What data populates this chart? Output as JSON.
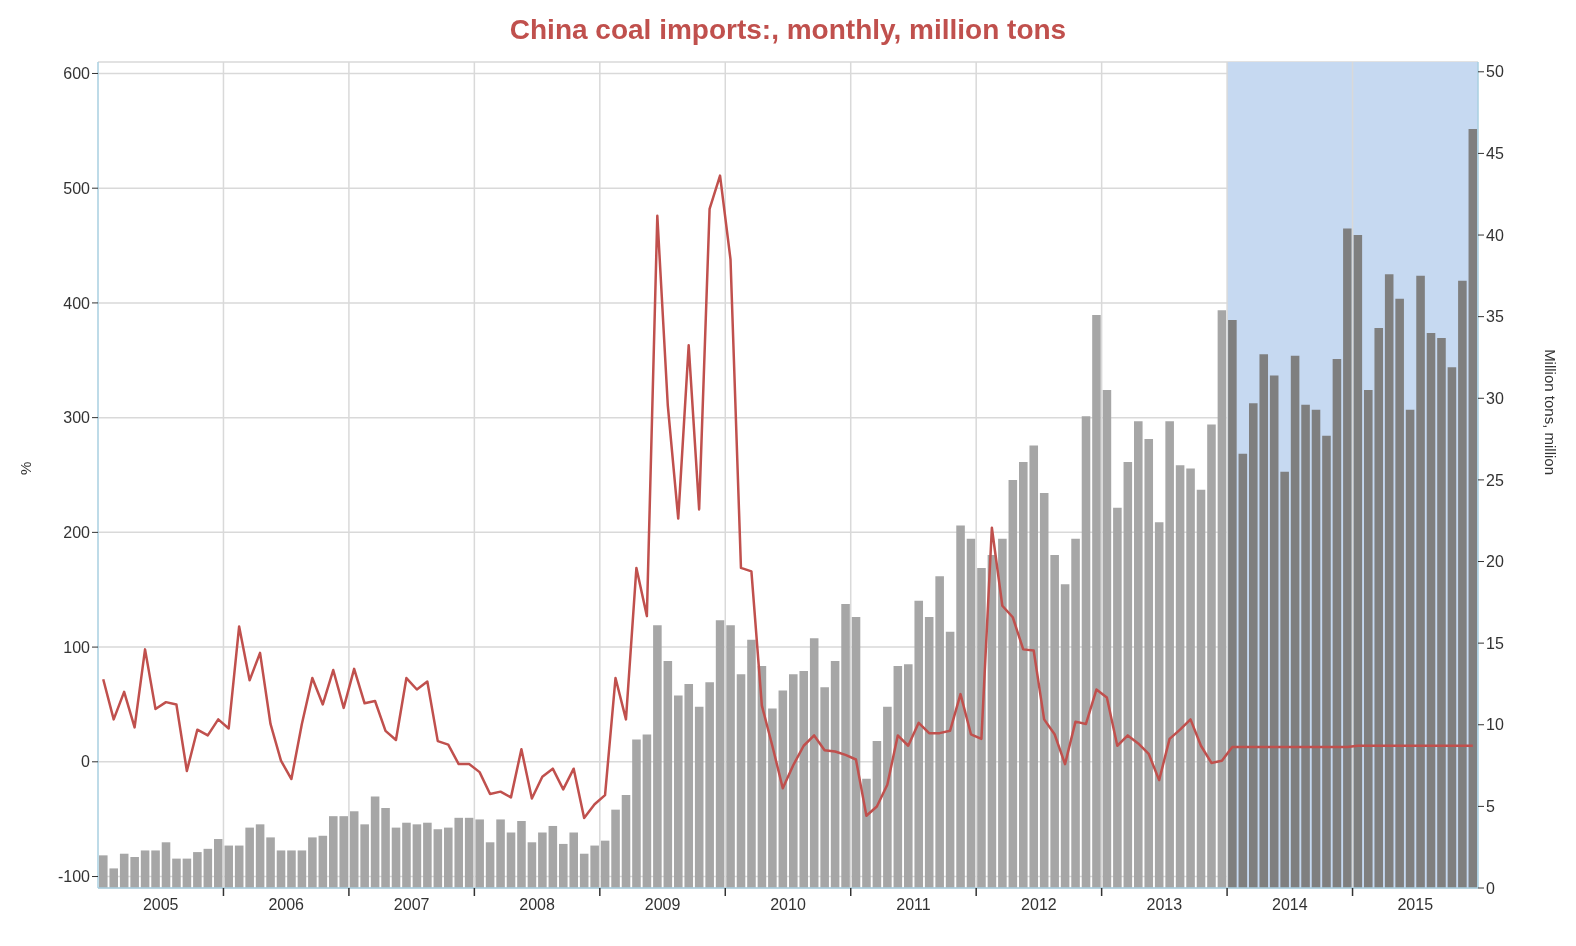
{
  "chart_data": {
    "type": "bar",
    "title": "China coal imports:, monthly, million tons",
    "ylabel": "%",
    "y2label": "Million tons, million",
    "x": [
      "2005-01",
      "2005-02",
      "2005-03",
      "2005-04",
      "2005-05",
      "2005-06",
      "2005-07",
      "2005-08",
      "2005-09",
      "2005-10",
      "2005-11",
      "2005-12",
      "2006-01",
      "2006-02",
      "2006-03",
      "2006-04",
      "2006-05",
      "2006-06",
      "2006-07",
      "2006-08",
      "2006-09",
      "2006-10",
      "2006-11",
      "2006-12",
      "2007-01",
      "2007-02",
      "2007-03",
      "2007-04",
      "2007-05",
      "2007-06",
      "2007-07",
      "2007-08",
      "2007-09",
      "2007-10",
      "2007-11",
      "2007-12",
      "2008-01",
      "2008-02",
      "2008-03",
      "2008-04",
      "2008-05",
      "2008-06",
      "2008-07",
      "2008-08",
      "2008-09",
      "2008-10",
      "2008-11",
      "2008-12",
      "2009-01",
      "2009-02",
      "2009-03",
      "2009-04",
      "2009-05",
      "2009-06",
      "2009-07",
      "2009-08",
      "2009-09",
      "2009-10",
      "2009-11",
      "2009-12",
      "2010-01",
      "2010-02",
      "2010-03",
      "2010-04",
      "2010-05",
      "2010-06",
      "2010-07",
      "2010-08",
      "2010-09",
      "2010-10",
      "2010-11",
      "2010-12",
      "2011-01",
      "2011-02",
      "2011-03",
      "2011-04",
      "2011-05",
      "2011-06",
      "2011-07",
      "2011-08",
      "2011-09",
      "2011-10",
      "2011-11",
      "2011-12",
      "2012-01",
      "2012-02",
      "2012-03",
      "2012-04",
      "2012-05",
      "2012-06",
      "2012-07",
      "2012-08",
      "2012-09",
      "2012-10",
      "2012-11",
      "2012-12",
      "2013-01",
      "2013-02",
      "2013-03",
      "2013-04",
      "2013-05",
      "2013-06",
      "2013-07",
      "2013-08",
      "2013-09",
      "2013-10",
      "2013-11",
      "2013-12",
      "2014-01",
      "2014-02",
      "2014-03",
      "2014-04",
      "2014-05",
      "2014-06",
      "2014-07",
      "2014-08",
      "2014-09",
      "2014-10",
      "2014-11",
      "2014-12",
      "2015-01",
      "2015-02",
      "2015-03",
      "2015-04",
      "2015-05",
      "2015-06",
      "2015-07",
      "2015-08",
      "2015-09",
      "2015-10",
      "2015-11",
      "2015-12"
    ],
    "series": [
      {
        "axis": "y2",
        "colors": [
          "#a6a6a6",
          "#a6a6a6",
          "#a6a6a6",
          "#a6a6a6",
          "#a6a6a6",
          "#a6a6a6",
          "#a6a6a6",
          "#a6a6a6",
          "#a6a6a6",
          "#a6a6a6",
          "#a6a6a6",
          "#a6a6a6",
          "#a6a6a6",
          "#a6a6a6",
          "#a6a6a6",
          "#a6a6a6",
          "#a6a6a6",
          "#a6a6a6",
          "#a6a6a6",
          "#a6a6a6",
          "#a6a6a6",
          "#a6a6a6",
          "#a6a6a6",
          "#a6a6a6",
          "#a6a6a6",
          "#a6a6a6",
          "#a6a6a6",
          "#a6a6a6",
          "#a6a6a6",
          "#a6a6a6",
          "#a6a6a6",
          "#a6a6a6",
          "#a6a6a6",
          "#a6a6a6",
          "#a6a6a6",
          "#a6a6a6",
          "#a6a6a6",
          "#a6a6a6",
          "#a6a6a6",
          "#a6a6a6",
          "#a6a6a6",
          "#a6a6a6",
          "#a6a6a6",
          "#a6a6a6",
          "#a6a6a6",
          "#a6a6a6",
          "#a6a6a6",
          "#a6a6a6",
          "#a6a6a6",
          "#a6a6a6",
          "#a6a6a6",
          "#a6a6a6",
          "#a6a6a6",
          "#a6a6a6",
          "#a6a6a6",
          "#a6a6a6",
          "#a6a6a6",
          "#a6a6a6",
          "#a6a6a6",
          "#a6a6a6",
          "#a6a6a6",
          "#a6a6a6",
          "#a6a6a6",
          "#a6a6a6",
          "#a6a6a6",
          "#a6a6a6",
          "#a6a6a6",
          "#a6a6a6",
          "#a6a6a6",
          "#a6a6a6",
          "#a6a6a6",
          "#a6a6a6",
          "#a6a6a6",
          "#a6a6a6",
          "#a6a6a6",
          "#a6a6a6",
          "#a6a6a6",
          "#a6a6a6",
          "#a6a6a6",
          "#a6a6a6",
          "#a6a6a6",
          "#a6a6a6",
          "#a6a6a6",
          "#a6a6a6",
          "#a6a6a6",
          "#a6a6a6",
          "#a6a6a6",
          "#a6a6a6",
          "#a6a6a6",
          "#a6a6a6",
          "#a6a6a6",
          "#a6a6a6",
          "#a6a6a6",
          "#a6a6a6",
          "#a6a6a6",
          "#a6a6a6",
          "#a6a6a6",
          "#a6a6a6",
          "#a6a6a6",
          "#a6a6a6",
          "#a6a6a6",
          "#a6a6a6",
          "#a6a6a6",
          "#a6a6a6",
          "#a6a6a6",
          "#a6a6a6",
          "#a6a6a6",
          "#a6a6a6",
          "#7f7f7f",
          "#7f7f7f",
          "#7f7f7f",
          "#7f7f7f",
          "#7f7f7f",
          "#7f7f7f",
          "#7f7f7f",
          "#7f7f7f",
          "#7f7f7f",
          "#7f7f7f",
          "#7f7f7f",
          "#7f7f7f",
          "#7f7f7f",
          "#7f7f7f",
          "#7f7f7f",
          "#7f7f7f",
          "#7f7f7f",
          "#7f7f7f",
          "#7f7f7f",
          "#7f7f7f",
          "#7f7f7f",
          "#7f7f7f",
          "#7f7f7f",
          "#7f7f7f"
        ],
        "values": [
          2.0,
          1.2,
          2.1,
          1.9,
          2.3,
          2.3,
          2.8,
          1.8,
          1.8,
          2.2,
          2.4,
          3.0,
          2.6,
          2.6,
          3.7,
          3.9,
          3.1,
          2.3,
          2.3,
          2.3,
          3.1,
          3.2,
          4.4,
          4.4,
          4.7,
          3.9,
          5.6,
          4.9,
          3.7,
          4.0,
          3.9,
          4.0,
          3.6,
          3.7,
          4.3,
          4.3,
          4.2,
          2.8,
          4.2,
          3.4,
          4.1,
          2.8,
          3.4,
          3.8,
          2.7,
          3.4,
          2.1,
          2.6,
          2.9,
          4.8,
          5.7,
          9.1,
          9.4,
          16.1,
          13.9,
          11.8,
          12.5,
          11.1,
          12.6,
          16.4,
          16.1,
          13.1,
          15.2,
          13.6,
          11.0,
          12.1,
          13.1,
          13.3,
          15.3,
          12.3,
          13.9,
          17.4,
          16.6,
          6.7,
          9.0,
          11.1,
          13.6,
          13.7,
          17.6,
          16.6,
          19.1,
          15.7,
          22.2,
          21.4,
          19.6,
          20.4,
          21.4,
          25.0,
          26.1,
          27.1,
          24.2,
          20.4,
          18.6,
          21.4,
          28.9,
          35.1,
          30.5,
          23.3,
          26.1,
          28.6,
          27.5,
          22.4,
          28.6,
          25.9,
          25.7,
          24.4,
          28.4,
          35.4,
          34.8,
          26.6,
          29.7,
          32.7,
          31.4,
          25.5,
          32.6,
          29.6,
          29.3,
          27.7,
          32.4,
          40.4,
          40.0,
          30.5,
          34.3,
          37.6,
          36.1,
          29.3,
          37.5,
          34.0,
          33.7,
          31.9,
          37.2,
          46.5
        ]
      },
      {
        "type": "line",
        "color": "#c0504d",
        "values": [
          72,
          37,
          61,
          30,
          98,
          46,
          52,
          50,
          -8,
          28,
          23,
          37,
          29,
          118,
          71,
          95,
          33,
          1,
          -15,
          33,
          73,
          50,
          80,
          47,
          81,
          51,
          53,
          27,
          19,
          73,
          63,
          70,
          18,
          15,
          -2,
          -2,
          -9,
          -28,
          -26,
          -31,
          11,
          -32,
          -13,
          -6,
          -24,
          -6,
          -49,
          -37,
          -29,
          73,
          37,
          169,
          127,
          476,
          311,
          212,
          363,
          220,
          482,
          511,
          438,
          169,
          166,
          49,
          14,
          -23,
          -3,
          14,
          23,
          10,
          9,
          6,
          2,
          -47,
          -39,
          -20,
          23,
          14,
          34,
          25,
          25,
          27,
          59,
          24,
          20,
          204,
          136,
          126,
          98,
          97,
          37,
          24,
          -2,
          35,
          33,
          63,
          56,
          14,
          23,
          16,
          7,
          -16,
          20,
          28,
          37,
          14,
          -1,
          1,
          13,
          13,
          13,
          13,
          13,
          13,
          13,
          13,
          13,
          13,
          13,
          13,
          14,
          14,
          14,
          14,
          14,
          14,
          14,
          14,
          14,
          14,
          14,
          14
        ]
      }
    ],
    "xlim": [
      "2004-12-16",
      "2015-12-16"
    ],
    "xticks": [
      {
        "value": "2005-06-16",
        "label": "2005"
      },
      {
        "value": "2005-12-16",
        "label": null
      },
      {
        "value": "2006-06-16",
        "label": "2006"
      },
      {
        "value": "2006-12-16",
        "label": null
      },
      {
        "value": "2007-06-16",
        "label": "2007"
      },
      {
        "value": "2007-12-16",
        "label": null
      },
      {
        "value": "2008-06-16",
        "label": "2008"
      },
      {
        "value": "2008-12-16",
        "label": null
      },
      {
        "value": "2009-06-16",
        "label": "2009"
      },
      {
        "value": "2009-12-16",
        "label": null
      },
      {
        "value": "2010-06-16",
        "label": "2010"
      },
      {
        "value": "2010-12-16",
        "label": null
      },
      {
        "value": "2011-06-16",
        "label": "2011"
      },
      {
        "value": "2011-12-16",
        "label": null
      },
      {
        "value": "2012-06-16",
        "label": "2012"
      },
      {
        "value": "2012-12-16",
        "label": null
      },
      {
        "value": "2013-06-16",
        "label": "2013"
      },
      {
        "value": "2013-12-16",
        "label": null
      },
      {
        "value": "2014-06-16",
        "label": "2014"
      },
      {
        "value": "2014-12-16",
        "label": null
      },
      {
        "value": "2015-06-16",
        "label": "2015"
      }
    ],
    "ylim": [
      -110,
      610
    ],
    "yticks": [
      -100,
      0,
      100,
      200,
      300,
      400,
      500,
      600
    ],
    "y2lim": [
      0,
      50.6
    ],
    "y2ticks": [
      0,
      5,
      10,
      15,
      20,
      25,
      30,
      35,
      40,
      45,
      50
    ],
    "bands": [
      {
        "axis": "x",
        "from": "2013-12-16",
        "to": "2015-12-16",
        "color": "#c6d9f1"
      }
    ],
    "grid": true
  }
}
